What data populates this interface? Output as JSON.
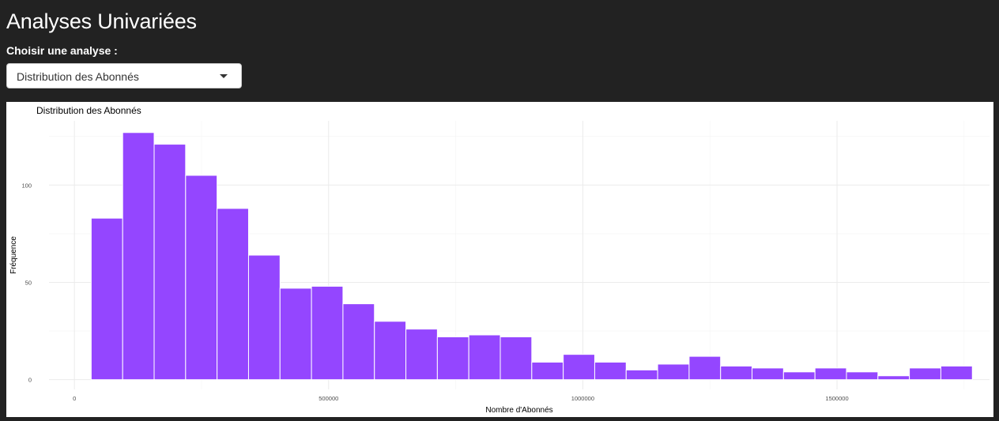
{
  "header": {
    "title": "Analyses Univariées"
  },
  "analysis_select": {
    "label": "Choisir une analyse :",
    "selected": "Distribution des Abonnés"
  },
  "colors": {
    "background": "#222222",
    "bar_fill": "#9446FF",
    "bar_border": "#FFFFFF"
  },
  "icons": {
    "dropdown": "caret-down-icon"
  },
  "chart_data": {
    "type": "bar",
    "title": "Distribution des Abonnés",
    "xlabel": "Nombre d'Abonnés",
    "ylabel": "Fréquence",
    "xlim": [
      -50000,
      1800000
    ],
    "ylim": [
      -5,
      133
    ],
    "xticks": [
      0,
      500000,
      1000000,
      1500000
    ],
    "xtick_labels": [
      "0",
      "500000",
      "1000000",
      "1500000"
    ],
    "yticks": [
      0,
      50,
      100
    ],
    "ytick_labels": [
      "0",
      "50",
      "100"
    ],
    "grid": true,
    "legend": "none",
    "bin_start": 33000,
    "bin_width": 61900,
    "values": [
      83,
      127,
      121,
      105,
      88,
      64,
      47,
      48,
      39,
      30,
      26,
      22,
      23,
      22,
      9,
      13,
      9,
      5,
      8,
      12,
      7,
      6,
      4,
      6,
      4,
      2,
      6,
      7
    ]
  }
}
